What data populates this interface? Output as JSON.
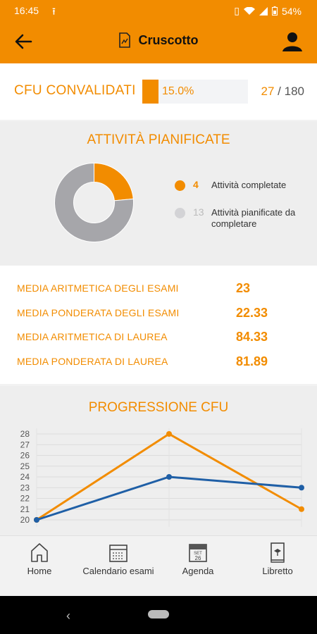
{
  "status_bar": {
    "time": "16:45",
    "battery": "54%"
  },
  "app_bar": {
    "title": "Cruscotto"
  },
  "cfu": {
    "label": "CFU CONVALIDATI",
    "percent_text": "15.0%",
    "progress_fraction": 0.15,
    "earned": "27",
    "separator": "/",
    "total": "180"
  },
  "attivita": {
    "heading": "ATTIVITÀ PIANIFICATE",
    "completed_value": "4",
    "completed_label": "Attività completate",
    "planned_value": "13",
    "planned_label": "Attività pianificate da completare",
    "colors": {
      "completed": "#f28c00",
      "planned": "#a6a6aa"
    }
  },
  "medie": [
    {
      "label": "MEDIA ARITMETICA DEGLI ESAMI",
      "value": "23"
    },
    {
      "label": "MEDIA PONDERATA DEGLI ESAMI",
      "value": "22.33"
    },
    {
      "label": "MEDIA ARITMETICA DI LAUREA",
      "value": "84.33"
    },
    {
      "label": "MEDIA PONDERATA DI LAUREA",
      "value": "81.89"
    }
  ],
  "progressione": {
    "heading": "PROGRESSIONE CFU"
  },
  "chart_data": {
    "type": "line",
    "title": "PROGRESSIONE CFU",
    "x": [
      1,
      2,
      3
    ],
    "ylim": [
      20,
      28
    ],
    "yticks": [
      20,
      21,
      22,
      23,
      24,
      25,
      26,
      27,
      28
    ],
    "grid": true,
    "series": [
      {
        "color": "#f28c00",
        "values": [
          20,
          28,
          21
        ]
      },
      {
        "color": "#1f5fa6",
        "values": [
          20,
          24,
          23
        ]
      }
    ]
  },
  "bottom_nav": [
    {
      "label": "Home",
      "icon": "home-icon"
    },
    {
      "label": "Calendario esami",
      "icon": "calendar-icon"
    },
    {
      "label": "Agenda",
      "icon": "agenda-icon"
    },
    {
      "label": "Libretto",
      "icon": "booklet-icon"
    }
  ],
  "agenda_icon_text": {
    "month": "SET",
    "day": "26"
  }
}
